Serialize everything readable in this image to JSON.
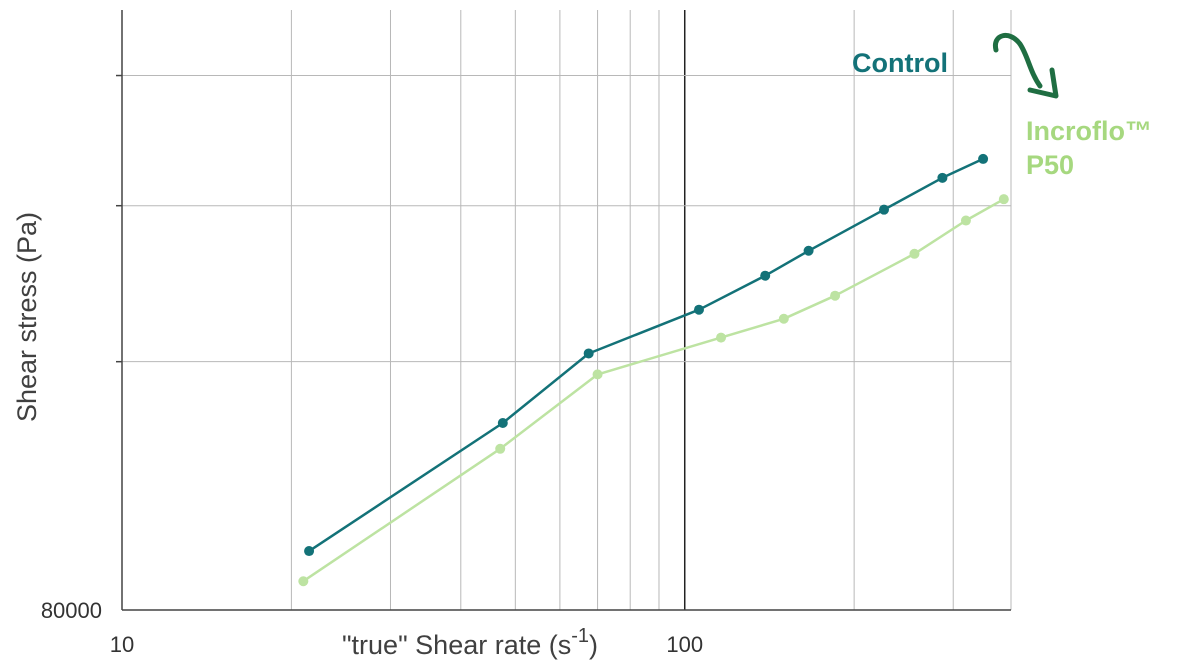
{
  "chart_data": {
    "type": "line",
    "title": "",
    "xlabel": "\"true\" Shear rate (s",
    "xlabel_superscript": "-1",
    "xlabel_suffix": ")",
    "ylabel": "Shear stress (Pa)",
    "x_scale": "log",
    "y_scale": "log",
    "xlim": [
      10,
      380
    ],
    "ylim": [
      80000,
      460000
    ],
    "x_ticks": [
      {
        "value": 10,
        "label": "10"
      },
      {
        "value": 100,
        "label": "100"
      }
    ],
    "y_ticks": [
      {
        "value": 80000,
        "label": "80000"
      }
    ],
    "x_minor_ticks": [
      20,
      30,
      40,
      50,
      60,
      70,
      80,
      90,
      200,
      300
    ],
    "y_grid": [
      165000,
      260000,
      380000
    ],
    "grid": true,
    "series": [
      {
        "name": "Control",
        "color": "#137278",
        "x": [
          21.5,
          47.5,
          67.5,
          106,
          139,
          166,
          226,
          287,
          339
        ],
        "y": [
          95000,
          138000,
          169000,
          192000,
          212000,
          228000,
          257000,
          282000,
          298000
        ]
      },
      {
        "name": "Incroflo™\nP50",
        "color": "#bde3a2",
        "x": [
          21,
          47,
          70,
          116,
          150,
          185,
          256,
          316,
          369
        ],
        "y": [
          87000,
          128000,
          159000,
          177000,
          187000,
          200000,
          226000,
          249000,
          265000
        ]
      }
    ],
    "annotations": [
      {
        "type": "curved-arrow",
        "color": "#1f6e42",
        "meaning": "shift from Control to Incroflo™ P50"
      }
    ]
  }
}
